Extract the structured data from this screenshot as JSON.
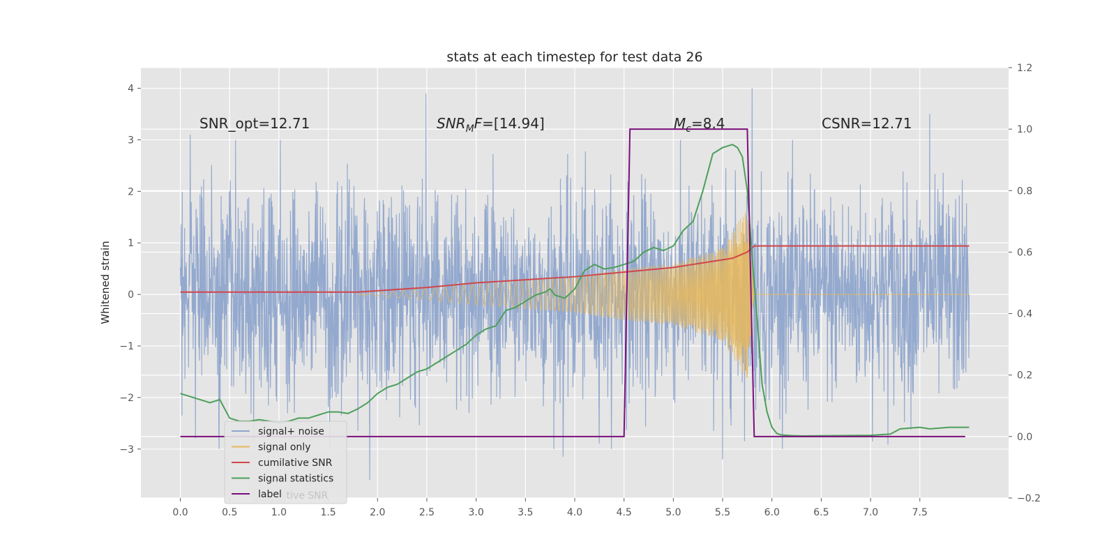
{
  "chart_data": {
    "type": "line",
    "title": "stats at each timestep for test data 26",
    "xlabel": "",
    "ylabel": "Whitened strain",
    "y2label": "",
    "xlim": [
      -0.4,
      8.4
    ],
    "ylim": [
      -3.95,
      4.4
    ],
    "y2lim": [
      -0.2,
      1.2
    ],
    "x_ticks": [
      "0.0",
      "0.5",
      "1.0",
      "1.5",
      "2.0",
      "2.5",
      "3.0",
      "3.5",
      "4.0",
      "4.5",
      "5.0",
      "5.5",
      "6.0",
      "6.5",
      "7.0",
      "7.5"
    ],
    "y_ticks": [
      "4",
      "3",
      "2",
      "1",
      "0",
      "−1",
      "−2",
      "−3"
    ],
    "y2_ticks": [
      "1.2",
      "1.0",
      "0.8",
      "0.6",
      "0.4",
      "0.2",
      "0.0",
      "−0.2"
    ],
    "grid": true,
    "legend_position": "lower-left",
    "annotations": [
      {
        "id": "snr-opt",
        "text": "SNR_opt=12.71"
      },
      {
        "id": "snr-mf",
        "text": "=[14.94]",
        "math_base": "SNR",
        "math_sub": "M",
        "math_tail": "F"
      },
      {
        "id": "mc",
        "text": "=8.4",
        "math_base": "M",
        "math_sub": "c"
      },
      {
        "id": "csnr",
        "text": "CSNR=12.71"
      }
    ],
    "legend_ghost_text": "cumilative SNR",
    "series": [
      {
        "name": "signal+ noise",
        "color": "#8fa5cc",
        "axis": "left",
        "kind": "noise",
        "x_range": [
          0,
          8
        ],
        "sigma": 1.0,
        "peaks": [
          [
            0.1,
            3.1
          ],
          [
            2.49,
            3.9
          ],
          [
            5.8,
            4.0
          ],
          [
            7.6,
            3.5
          ],
          [
            3.88,
            -3.15
          ],
          [
            1.92,
            -3.6
          ],
          [
            5.5,
            -3.2
          ]
        ]
      },
      {
        "name": "signal only",
        "color": "#e8b85a",
        "axis": "left",
        "kind": "chirp",
        "x_range": [
          1.8,
          5.82
        ],
        "envelope": [
          [
            1.8,
            0.0
          ],
          [
            3.0,
            0.2
          ],
          [
            4.0,
            0.35
          ],
          [
            4.5,
            0.5
          ],
          [
            5.0,
            0.6
          ],
          [
            5.5,
            0.9
          ],
          [
            5.75,
            1.7
          ],
          [
            5.82,
            0.0
          ]
        ]
      },
      {
        "name": "cumilative SNR",
        "color": "#d0464a",
        "axis": "right",
        "x": [
          0.0,
          1.0,
          1.8,
          2.5,
          3.0,
          3.5,
          4.0,
          4.5,
          5.0,
          5.3,
          5.6,
          5.75,
          5.82,
          8.0
        ],
        "y": [
          0.47,
          0.47,
          0.47,
          0.485,
          0.5,
          0.51,
          0.52,
          0.535,
          0.55,
          0.565,
          0.58,
          0.6,
          0.62,
          0.62
        ]
      },
      {
        "name": "signal statistics",
        "color": "#4c9f5a",
        "axis": "right",
        "x": [
          0.0,
          0.1,
          0.2,
          0.3,
          0.4,
          0.5,
          0.6,
          0.7,
          0.8,
          0.9,
          1.0,
          1.1,
          1.2,
          1.3,
          1.4,
          1.5,
          1.6,
          1.7,
          1.8,
          1.9,
          2.0,
          2.1,
          2.2,
          2.3,
          2.4,
          2.5,
          2.6,
          2.7,
          2.8,
          2.9,
          3.0,
          3.1,
          3.2,
          3.3,
          3.4,
          3.5,
          3.6,
          3.7,
          3.75,
          3.8,
          3.9,
          4.0,
          4.1,
          4.2,
          4.3,
          4.4,
          4.5,
          4.6,
          4.7,
          4.8,
          4.9,
          5.0,
          5.1,
          5.2,
          5.3,
          5.4,
          5.5,
          5.6,
          5.65,
          5.7,
          5.75,
          5.8,
          5.85,
          5.9,
          5.95,
          6.0,
          6.05,
          6.1,
          6.2,
          6.3,
          6.5,
          7.0,
          7.2,
          7.3,
          7.5,
          7.6,
          7.8,
          8.0
        ],
        "y": [
          0.14,
          0.13,
          0.12,
          0.11,
          0.12,
          0.06,
          0.05,
          0.05,
          0.055,
          0.05,
          0.045,
          0.05,
          0.06,
          0.06,
          0.07,
          0.08,
          0.08,
          0.075,
          0.09,
          0.11,
          0.14,
          0.16,
          0.17,
          0.19,
          0.21,
          0.22,
          0.24,
          0.26,
          0.28,
          0.3,
          0.33,
          0.35,
          0.36,
          0.41,
          0.42,
          0.44,
          0.46,
          0.47,
          0.48,
          0.46,
          0.45,
          0.48,
          0.54,
          0.56,
          0.545,
          0.55,
          0.56,
          0.57,
          0.6,
          0.615,
          0.605,
          0.62,
          0.67,
          0.7,
          0.8,
          0.92,
          0.94,
          0.95,
          0.94,
          0.91,
          0.8,
          0.58,
          0.38,
          0.17,
          0.08,
          0.03,
          0.01,
          0.005,
          0.003,
          0.002,
          0.0025,
          0.004,
          0.008,
          0.025,
          0.03,
          0.025,
          0.03,
          0.03
        ]
      },
      {
        "name": "label",
        "color": "#7b0f7b",
        "axis": "right",
        "x": [
          0.0,
          4.5,
          4.56,
          5.75,
          5.82,
          7.96
        ],
        "y": [
          0.0,
          0.0,
          1.0,
          1.0,
          0.0,
          0.0
        ]
      }
    ]
  }
}
